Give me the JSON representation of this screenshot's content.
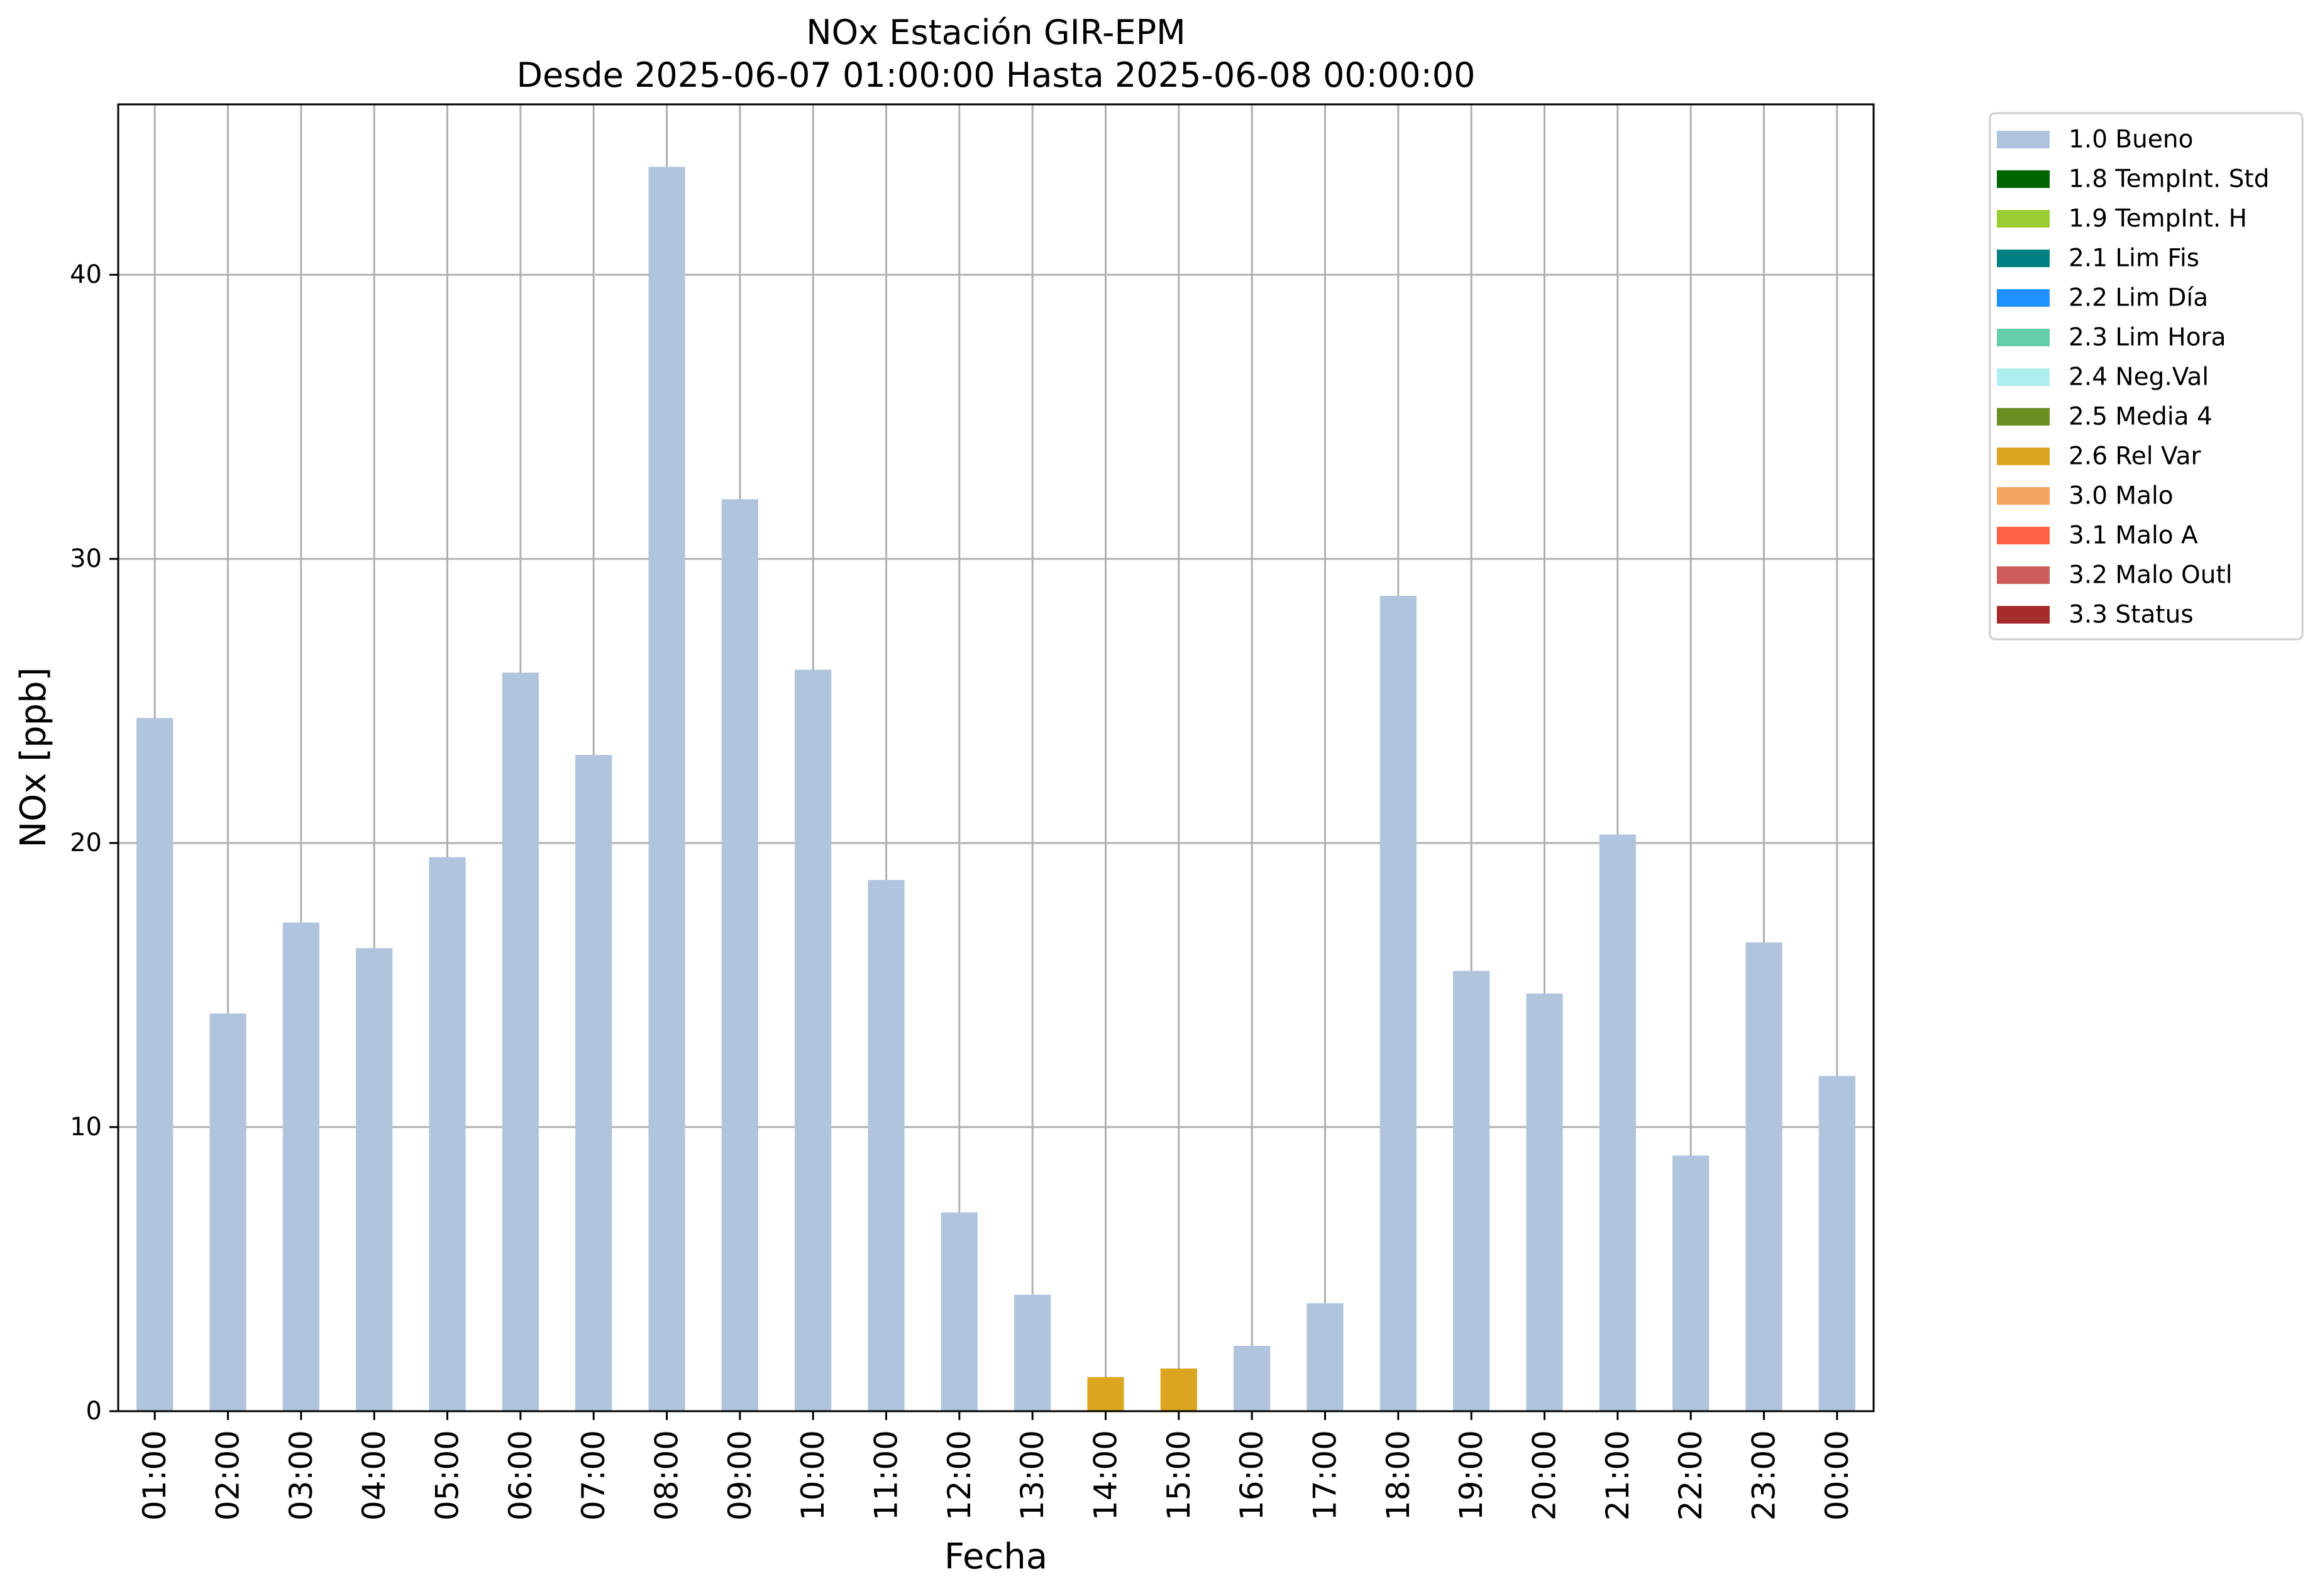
{
  "chart_data": {
    "type": "bar",
    "title_line1": "NOx Estación GIR-EPM",
    "title_line2": "Desde 2025-06-07 01:00:00 Hasta 2025-06-08 00:00:00",
    "xlabel": "Fecha",
    "ylabel": "NOx [ppb]",
    "ylim": [
      0,
      46
    ],
    "yticks": [
      0,
      10,
      20,
      30,
      40
    ],
    "grid": true,
    "legend_position": "outside top-right",
    "categories": [
      "01:00",
      "02:00",
      "03:00",
      "04:00",
      "05:00",
      "06:00",
      "07:00",
      "08:00",
      "09:00",
      "10:00",
      "11:00",
      "12:00",
      "13:00",
      "14:00",
      "15:00",
      "16:00",
      "17:00",
      "18:00",
      "19:00",
      "20:00",
      "21:00",
      "22:00",
      "23:00",
      "00:00"
    ],
    "values": [
      24.4,
      14.0,
      17.2,
      16.3,
      19.5,
      26.0,
      23.1,
      43.8,
      32.1,
      26.1,
      18.7,
      7.0,
      4.1,
      1.2,
      1.5,
      2.3,
      3.8,
      28.7,
      15.5,
      14.7,
      20.3,
      9.0,
      16.5,
      11.8
    ],
    "flags": [
      "1.0 Bueno",
      "1.0 Bueno",
      "1.0 Bueno",
      "1.0 Bueno",
      "1.0 Bueno",
      "1.0 Bueno",
      "1.0 Bueno",
      "1.0 Bueno",
      "1.0 Bueno",
      "1.0 Bueno",
      "1.0 Bueno",
      "1.0 Bueno",
      "1.0 Bueno",
      "2.6 Rel Var",
      "2.6 Rel Var",
      "1.0 Bueno",
      "1.0 Bueno",
      "1.0 Bueno",
      "1.0 Bueno",
      "1.0 Bueno",
      "1.0 Bueno",
      "1.0 Bueno",
      "1.0 Bueno",
      "1.0 Bueno"
    ],
    "legend": [
      {
        "label": "1.0 Bueno",
        "color": "#b0c4de"
      },
      {
        "label": "1.8 TempInt. Std",
        "color": "#006400"
      },
      {
        "label": "1.9 TempInt. H",
        "color": "#9acd32"
      },
      {
        "label": "2.1 Lim Fis",
        "color": "#008080"
      },
      {
        "label": "2.2 Lim Día",
        "color": "#1e90ff"
      },
      {
        "label": "2.3 Lim Hora",
        "color": "#66cdaa"
      },
      {
        "label": "2.4 Neg.Val",
        "color": "#afeeee"
      },
      {
        "label": "2.5 Media 4",
        "color": "#6b8e23"
      },
      {
        "label": "2.6 Rel Var",
        "color": "#daa520"
      },
      {
        "label": "3.0 Malo",
        "color": "#f4a460"
      },
      {
        "label": "3.1 Malo A",
        "color": "#ff6347"
      },
      {
        "label": "3.2 Malo Outl",
        "color": "#cd5c5c"
      },
      {
        "label": "3.3 Status",
        "color": "#a52a2a"
      }
    ]
  }
}
